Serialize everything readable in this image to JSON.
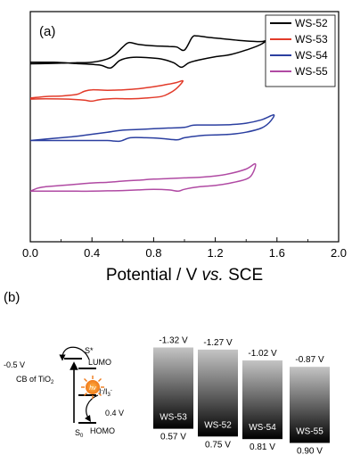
{
  "chart_data": [
    {
      "type": "line",
      "panel_label": "(a)",
      "xlabel_pre": "Potential / V ",
      "xlabel_italic": "vs.",
      "xlabel_post": " SCE",
      "xlim": [
        0.0,
        2.0
      ],
      "xticks": [
        "0.0",
        "0.4",
        "0.8",
        "1.2",
        "1.6",
        "2.0"
      ],
      "legend_position": "top-right",
      "series": [
        {
          "name": "WS-52",
          "color": "#000000",
          "offset_level": 0.82,
          "amplitude": 0.13,
          "anodic": [
            [
              0.0,
              0.72
            ],
            [
              0.1,
              0.7
            ],
            [
              0.2,
              0.68
            ],
            [
              0.3,
              0.65
            ],
            [
              0.4,
              0.62
            ],
            [
              0.5,
              0.4
            ],
            [
              0.55,
              0.1
            ],
            [
              0.6,
              -0.4
            ],
            [
              0.64,
              -0.7
            ],
            [
              0.7,
              -0.58
            ],
            [
              0.8,
              -0.48
            ],
            [
              0.9,
              -0.44
            ],
            [
              0.95,
              -0.4
            ],
            [
              1.0,
              -0.2
            ],
            [
              1.05,
              -1.05
            ],
            [
              1.08,
              -1.15
            ],
            [
              1.15,
              -1.05
            ],
            [
              1.25,
              -0.95
            ],
            [
              1.35,
              -0.85
            ],
            [
              1.45,
              -0.78
            ],
            [
              1.52,
              -0.8
            ],
            [
              1.58,
              -1.25
            ]
          ],
          "cathodic": [
            [
              1.58,
              -1.25
            ],
            [
              1.5,
              -0.6
            ],
            [
              1.4,
              -0.2
            ],
            [
              1.3,
              0.1
            ],
            [
              1.2,
              0.25
            ],
            [
              1.1,
              0.45
            ],
            [
              1.03,
              0.65
            ],
            [
              0.98,
              0.95
            ],
            [
              0.93,
              0.65
            ],
            [
              0.85,
              0.4
            ],
            [
              0.75,
              0.3
            ],
            [
              0.65,
              0.3
            ],
            [
              0.58,
              0.5
            ],
            [
              0.52,
              1.0
            ],
            [
              0.45,
              0.8
            ],
            [
              0.3,
              0.7
            ],
            [
              0.15,
              0.62
            ],
            [
              0.0,
              0.62
            ]
          ]
        },
        {
          "name": "WS-53",
          "color": "#e23b2a",
          "offset_level": 0.64,
          "amplitude": 0.09,
          "anodic": [
            [
              0.0,
              0.35
            ],
            [
              0.1,
              0.2
            ],
            [
              0.2,
              0.15
            ],
            [
              0.3,
              0.0
            ],
            [
              0.35,
              -0.3
            ],
            [
              0.4,
              -0.45
            ],
            [
              0.5,
              -0.4
            ],
            [
              0.6,
              -0.45
            ],
            [
              0.7,
              -0.55
            ],
            [
              0.8,
              -0.75
            ],
            [
              0.9,
              -1.0
            ],
            [
              0.95,
              -1.15
            ],
            [
              0.99,
              -1.3
            ]
          ],
          "cathodic": [
            [
              0.99,
              -1.3
            ],
            [
              0.95,
              -0.6
            ],
            [
              0.9,
              -0.1
            ],
            [
              0.85,
              0.2
            ],
            [
              0.75,
              0.35
            ],
            [
              0.65,
              0.42
            ],
            [
              0.55,
              0.4
            ],
            [
              0.45,
              0.5
            ],
            [
              0.4,
              0.65
            ],
            [
              0.35,
              0.55
            ],
            [
              0.25,
              0.45
            ],
            [
              0.1,
              0.42
            ],
            [
              0.0,
              0.45
            ]
          ]
        },
        {
          "name": "WS-54",
          "color": "#2b3fa0",
          "offset_level": 0.47,
          "amplitude": 0.12,
          "anodic": [
            [
              0.0,
              0.5
            ],
            [
              0.1,
              0.4
            ],
            [
              0.2,
              0.3
            ],
            [
              0.3,
              0.2
            ],
            [
              0.4,
              0.05
            ],
            [
              0.5,
              -0.1
            ],
            [
              0.6,
              -0.25
            ],
            [
              0.7,
              -0.3
            ],
            [
              0.8,
              -0.35
            ],
            [
              0.9,
              -0.4
            ],
            [
              1.0,
              -0.45
            ],
            [
              1.05,
              -0.6
            ],
            [
              1.1,
              -0.62
            ],
            [
              1.2,
              -0.62
            ],
            [
              1.3,
              -0.65
            ],
            [
              1.4,
              -0.75
            ],
            [
              1.5,
              -1.0
            ],
            [
              1.58,
              -1.35
            ]
          ],
          "cathodic": [
            [
              1.58,
              -1.35
            ],
            [
              1.55,
              -0.8
            ],
            [
              1.5,
              -0.4
            ],
            [
              1.4,
              -0.1
            ],
            [
              1.3,
              0.05
            ],
            [
              1.2,
              0.1
            ],
            [
              1.1,
              0.15
            ],
            [
              1.0,
              0.3
            ],
            [
              0.95,
              0.45
            ],
            [
              0.85,
              0.35
            ],
            [
              0.75,
              0.3
            ],
            [
              0.65,
              0.3
            ],
            [
              0.58,
              0.55
            ],
            [
              0.5,
              0.5
            ],
            [
              0.4,
              0.5
            ],
            [
              0.3,
              0.5
            ],
            [
              0.2,
              0.5
            ],
            [
              0.1,
              0.5
            ],
            [
              0.0,
              0.5
            ]
          ]
        },
        {
          "name": "WS-55",
          "color": "#b04aa3",
          "offset_level": 0.25,
          "amplitude": 0.11,
          "anodic": [
            [
              0.0,
              0.55
            ],
            [
              0.05,
              0.3
            ],
            [
              0.1,
              0.2
            ],
            [
              0.2,
              0.1
            ],
            [
              0.3,
              0.0
            ],
            [
              0.4,
              -0.1
            ],
            [
              0.5,
              -0.15
            ],
            [
              0.6,
              -0.25
            ],
            [
              0.7,
              -0.32
            ],
            [
              0.8,
              -0.4
            ],
            [
              0.9,
              -0.45
            ],
            [
              1.0,
              -0.5
            ],
            [
              1.1,
              -0.55
            ],
            [
              1.2,
              -0.65
            ],
            [
              1.3,
              -0.85
            ],
            [
              1.4,
              -1.2
            ],
            [
              1.46,
              -1.6
            ]
          ],
          "cathodic": [
            [
              1.46,
              -1.6
            ],
            [
              1.44,
              -0.8
            ],
            [
              1.4,
              -0.4
            ],
            [
              1.3,
              -0.1
            ],
            [
              1.2,
              0.1
            ],
            [
              1.1,
              0.2
            ],
            [
              1.0,
              0.4
            ],
            [
              0.96,
              0.55
            ],
            [
              0.9,
              0.45
            ],
            [
              0.8,
              0.4
            ],
            [
              0.7,
              0.45
            ],
            [
              0.6,
              0.5
            ],
            [
              0.5,
              0.52
            ],
            [
              0.4,
              0.55
            ],
            [
              0.3,
              0.55
            ],
            [
              0.2,
              0.55
            ],
            [
              0.1,
              0.55
            ],
            [
              0.0,
              0.55
            ]
          ]
        }
      ]
    }
  ],
  "panel_b": {
    "label": "(b)",
    "scheme": {
      "s_star": "S*",
      "lumo": "LUMO",
      "cb_value": "-0.5 V",
      "cb_label_pre": "CB of TiO",
      "cb_label_sub": "2",
      "redox_pre": "I",
      "redox_sup1": "-",
      "redox_mid": "/I",
      "redox_sub": "3",
      "redox_sup2": "-",
      "redox_value": "0.4 V",
      "s0_pre": "S",
      "s0_sub": "0",
      "homo": "HOMO",
      "light_symbol": "hν"
    },
    "levels": [
      {
        "name": "WS-53",
        "lumo": "-1.32 V",
        "homo": "0.57 V",
        "lumo_v": -1.32,
        "homo_v": 0.57
      },
      {
        "name": "WS-52",
        "lumo": "-1.27 V",
        "homo": "0.75 V",
        "lumo_v": -1.27,
        "homo_v": 0.75
      },
      {
        "name": "WS-54",
        "lumo": "-1.02 V",
        "homo": "0.81 V",
        "lumo_v": -1.02,
        "homo_v": 0.81
      },
      {
        "name": "WS-55",
        "lumo": "-0.87 V",
        "homo": "0.90 V",
        "lumo_v": -0.87,
        "homo_v": 0.9
      }
    ]
  }
}
